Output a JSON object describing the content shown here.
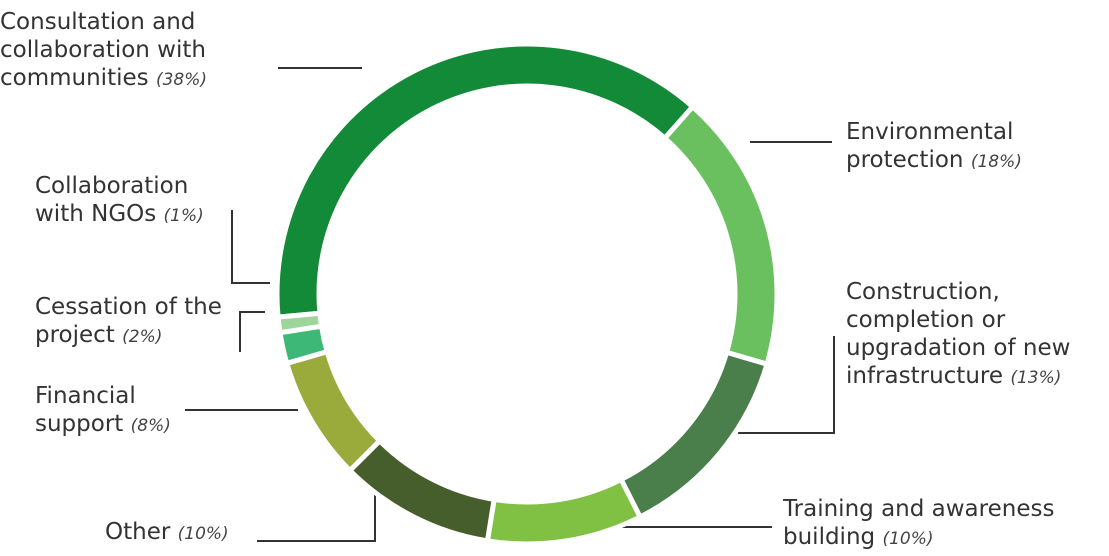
{
  "chart_data": {
    "type": "donut",
    "categories": [
      "Consultation and collaboration with communities",
      "Environmental protection",
      "Construction, completion or upgradation of new infrastructure",
      "Training and awareness building",
      "Other",
      "Financial support",
      "Cessation of the project",
      "Collaboration with NGOs"
    ],
    "values": [
      38,
      18,
      13,
      10,
      10,
      8,
      2,
      1
    ],
    "value_labels": [
      "(38%)",
      "(18%)",
      "(13%)",
      "(10%)",
      "(10%)",
      "(8%)",
      "(2%)",
      "(1%)"
    ],
    "colors": [
      "#138a37",
      "#6abf5e",
      "#4a7f4c",
      "#80c143",
      "#465e2b",
      "#9aaa3b",
      "#3db877",
      "#9fd49a"
    ]
  }
}
